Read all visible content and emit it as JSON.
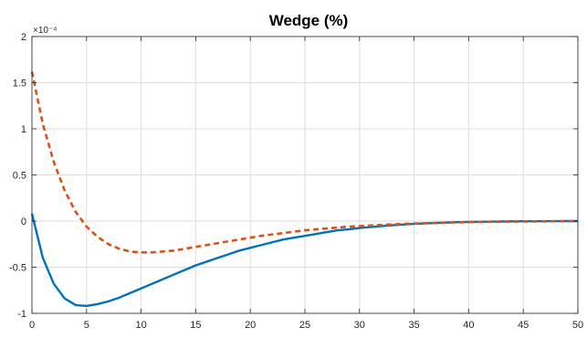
{
  "chart_data": {
    "type": "line",
    "title": "Wedge (%)",
    "exponent_label": "×10⁻⁴",
    "xlabel": "",
    "ylabel": "",
    "xlim": [
      0,
      50
    ],
    "ylim": [
      -1,
      2
    ],
    "xticks": [
      0,
      5,
      10,
      15,
      20,
      25,
      30,
      35,
      40,
      45,
      50
    ],
    "yticks": [
      -1,
      -0.5,
      0,
      0.5,
      1,
      1.5,
      2
    ],
    "xtick_labels": [
      "0",
      "5",
      "10",
      "15",
      "20",
      "25",
      "30",
      "35",
      "40",
      "45",
      "50"
    ],
    "ytick_labels": [
      "-1",
      "-0.5",
      "0",
      "0.5",
      "1",
      "1.5",
      "2"
    ],
    "grid": true,
    "x": [
      0,
      1,
      2,
      3,
      4,
      5,
      6,
      7,
      8,
      9,
      10,
      11,
      12,
      13,
      14,
      15,
      16,
      17,
      18,
      19,
      20,
      21,
      22,
      23,
      24,
      25,
      26,
      27,
      28,
      29,
      30,
      31,
      32,
      33,
      34,
      35,
      36,
      37,
      38,
      39,
      40,
      41,
      42,
      43,
      44,
      45,
      46,
      47,
      48,
      49,
      50
    ],
    "series": [
      {
        "color": "#0072BD",
        "style": "solid",
        "values": [
          0.08,
          -0.4,
          -0.68,
          -0.84,
          -0.91,
          -0.92,
          -0.9,
          -0.87,
          -0.83,
          -0.78,
          -0.73,
          -0.68,
          -0.63,
          -0.58,
          -0.53,
          -0.48,
          -0.44,
          -0.4,
          -0.36,
          -0.32,
          -0.29,
          -0.26,
          -0.23,
          -0.2,
          -0.18,
          -0.16,
          -0.14,
          -0.12,
          -0.1,
          -0.09,
          -0.075,
          -0.065,
          -0.055,
          -0.045,
          -0.038,
          -0.03,
          -0.025,
          -0.02,
          -0.016,
          -0.012,
          -0.01,
          -0.008,
          -0.006,
          -0.004,
          -0.003,
          -0.002,
          -0.002,
          -0.001,
          -0.001,
          0,
          0
        ]
      },
      {
        "color": "#D95319",
        "style": "dashed",
        "values": [
          1.62,
          1.05,
          0.64,
          0.33,
          0.1,
          -0.06,
          -0.17,
          -0.25,
          -0.3,
          -0.33,
          -0.34,
          -0.34,
          -0.33,
          -0.32,
          -0.3,
          -0.28,
          -0.26,
          -0.24,
          -0.22,
          -0.2,
          -0.18,
          -0.16,
          -0.145,
          -0.13,
          -0.115,
          -0.1,
          -0.09,
          -0.08,
          -0.07,
          -0.06,
          -0.055,
          -0.048,
          -0.042,
          -0.036,
          -0.031,
          -0.027,
          -0.023,
          -0.02,
          -0.017,
          -0.014,
          -0.012,
          -0.01,
          -0.008,
          -0.007,
          -0.006,
          -0.005,
          -0.004,
          -0.003,
          -0.002,
          -0.002,
          -0.001
        ]
      }
    ]
  }
}
